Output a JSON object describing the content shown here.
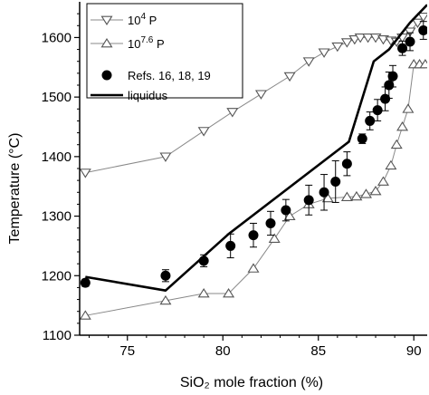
{
  "chart_data": {
    "type": "line",
    "xlabel": "SiO₂ mole fraction (%)",
    "ylabel": "Temperature (°C)",
    "xlim": [
      72.5,
      90.7
    ],
    "ylim": [
      1100,
      1660
    ],
    "xticks": [
      75,
      80,
      85,
      90
    ],
    "yticks": [
      1100,
      1200,
      1300,
      1400,
      1500,
      1600
    ],
    "legend_position": "top-left",
    "grid": false,
    "series": [
      {
        "name": "10^4 P",
        "legend_label": {
          "base": "10",
          "exp": "4",
          "suffix": " P"
        },
        "marker": "triangle-down-open",
        "color": "#888888",
        "x": [
          72.8,
          77.0,
          79.0,
          80.5,
          82.0,
          83.5,
          84.5,
          85.3,
          86.0,
          86.5,
          86.9,
          87.2,
          87.6,
          88.0,
          88.4,
          88.8,
          89.1,
          89.4,
          89.8,
          90.2,
          90.5
        ],
        "y": [
          1373,
          1400,
          1443,
          1475,
          1505,
          1535,
          1560,
          1575,
          1585,
          1592,
          1597,
          1600,
          1600,
          1600,
          1597,
          1595,
          1593,
          1600,
          1610,
          1625,
          1635
        ]
      },
      {
        "name": "10^7.6 P",
        "legend_label": {
          "base": "10",
          "exp": "7.6",
          "suffix": " P"
        },
        "marker": "triangle-up-open",
        "color": "#888888",
        "x": [
          72.8,
          77.0,
          79.0,
          80.3,
          81.6,
          82.7,
          83.5,
          84.5,
          85.5,
          86.5,
          87.0,
          87.5,
          88.0,
          88.4,
          88.8,
          89.1,
          89.4,
          89.7,
          90.0,
          90.3,
          90.6
        ],
        "y": [
          1133,
          1158,
          1170,
          1170,
          1212,
          1262,
          1300,
          1320,
          1330,
          1332,
          1333,
          1337,
          1342,
          1358,
          1385,
          1420,
          1450,
          1480,
          1555,
          1555,
          1555
        ]
      },
      {
        "name": "Refs. 16, 18, 19",
        "marker": "circle-filled",
        "color": "#000000",
        "x": [
          72.8,
          77.0,
          79.0,
          80.4,
          81.6,
          82.5,
          83.3,
          84.5,
          85.3,
          85.9,
          86.5,
          87.3,
          87.7,
          88.1,
          88.5,
          88.7,
          88.9,
          89.4,
          89.8,
          90.5
        ],
        "y": [
          1188,
          1200,
          1225,
          1250,
          1268,
          1288,
          1310,
          1327,
          1340,
          1358,
          1388,
          1430,
          1460,
          1478,
          1497,
          1520,
          1535,
          1582,
          1593,
          1612
        ],
        "err": [
          6,
          10,
          10,
          20,
          20,
          20,
          18,
          25,
          30,
          35,
          20,
          8,
          15,
          18,
          20,
          22,
          18,
          12,
          15,
          15
        ]
      },
      {
        "name": "liquidus",
        "marker": "none",
        "line": "solid-thick",
        "color": "#000000",
        "x": [
          72.8,
          77.0,
          80.3,
          86.6,
          87.9,
          88.7,
          89.8,
          90.7
        ],
        "y": [
          1198,
          1175,
          1270,
          1425,
          1560,
          1580,
          1625,
          1655
        ]
      }
    ]
  }
}
